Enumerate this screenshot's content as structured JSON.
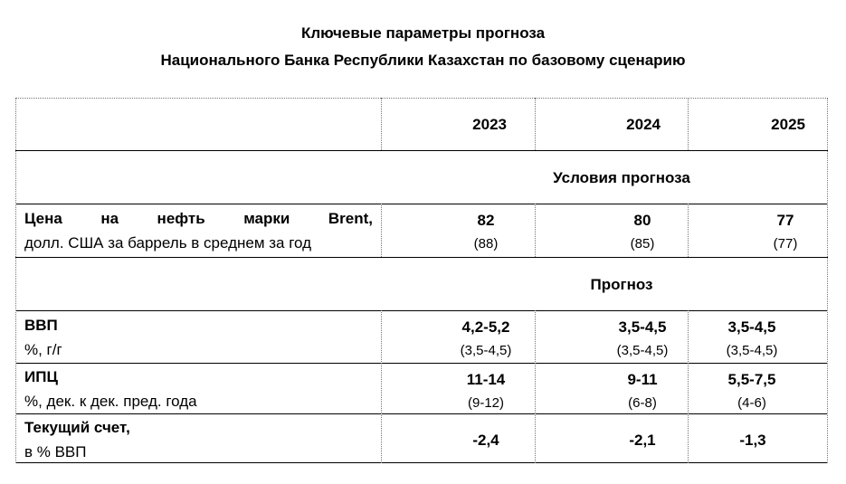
{
  "title": {
    "line1": "Ключевые параметры прогноза",
    "line2": "Национального Банка Республики Казахстан по базовому сценарию"
  },
  "header": {
    "y2023": "2023",
    "y2024": "2024",
    "y2025": "2025"
  },
  "section_conditions": "Условия прогноза",
  "section_forecast": "Прогноз",
  "rows": {
    "oil": {
      "w1": "Цена",
      "w2": "на",
      "w3": "нефть",
      "w4": "марки",
      "w5": "Brent,",
      "label2": "долл. США за баррель в среднем за год",
      "v2023": "82",
      "p2023": "(88)",
      "v2024": "80",
      "p2024": "(85)",
      "v2025": "77",
      "p2025": "(77)"
    },
    "gdp": {
      "label1": "ВВП",
      "label2": "%, г/г",
      "v2023": "4,2-5,2",
      "p2023": "(3,5-4,5)",
      "v2024": "3,5-4,5",
      "p2024": "(3,5-4,5)",
      "v2025": "3,5-4,5",
      "p2025": "(3,5-4,5)"
    },
    "cpi": {
      "label1": "ИПЦ",
      "label2": "%, дек. к дек. пред. года",
      "v2023": "11-14",
      "p2023": "(9-12)",
      "v2024": "9-11",
      "p2024": "(6-8)",
      "v2025": "5,5-7,5",
      "p2025": "(4-6)"
    },
    "ca": {
      "label1": "Текущий счет,",
      "label2": "в % ВВП",
      "v2023": "-2,4",
      "v2024": "-2,1",
      "v2025": "-1,3"
    }
  }
}
